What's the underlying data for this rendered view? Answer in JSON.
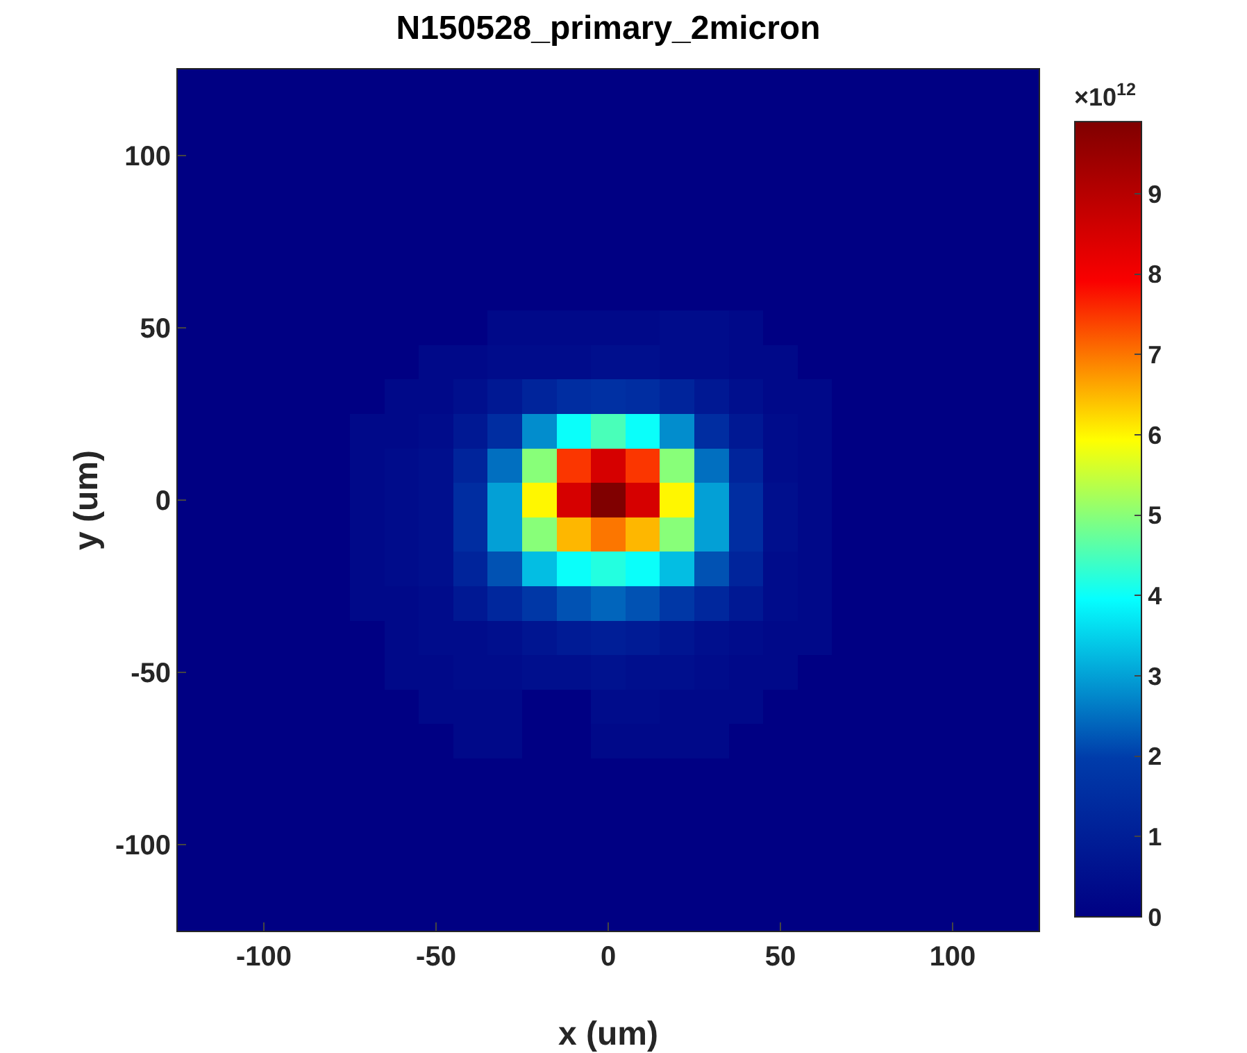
{
  "chart_data": {
    "type": "heatmap",
    "title": "N150528_primary_2micron",
    "xlabel": "x (um)",
    "ylabel": "y (um)",
    "clabel": "×10$^{12}$",
    "x": [
      -120,
      -110,
      -100,
      -90,
      -80,
      -70,
      -60,
      -50,
      -40,
      -30,
      -20,
      -10,
      0,
      10,
      20,
      30,
      40,
      50,
      60,
      70,
      80,
      90,
      100,
      110,
      120
    ],
    "y": [
      120,
      110,
      100,
      90,
      80,
      70,
      60,
      50,
      40,
      30,
      20,
      10,
      0,
      -10,
      -20,
      -30,
      -40,
      -50,
      -60,
      -70,
      -80,
      -90,
      -100,
      -110,
      -120
    ],
    "cells": [
      [
        0,
        0,
        0,
        0,
        0,
        0,
        0,
        0,
        0,
        0,
        0,
        0,
        0,
        0,
        0,
        0,
        0,
        0,
        0,
        0,
        0,
        0,
        0,
        0,
        0
      ],
      [
        0,
        0,
        0,
        0,
        0,
        0,
        0,
        0,
        0,
        0,
        0,
        0,
        0,
        0,
        0,
        0,
        0,
        0,
        0,
        0,
        0,
        0,
        0,
        0,
        0
      ],
      [
        0,
        0,
        0,
        0,
        0,
        0,
        0,
        0,
        0,
        0,
        0,
        0,
        0,
        0,
        0,
        0,
        0,
        0,
        0,
        0,
        0,
        0,
        0,
        0,
        0
      ],
      [
        0,
        0,
        0,
        0,
        0,
        0,
        0,
        0,
        0,
        0,
        0,
        0,
        0,
        0,
        0,
        0,
        0,
        0,
        0,
        0,
        0,
        0,
        0,
        0,
        0
      ],
      [
        0,
        0,
        0,
        0,
        0,
        0,
        0,
        0,
        0,
        0,
        0,
        0,
        0,
        0,
        0,
        0,
        0,
        0,
        0,
        0,
        0,
        0,
        0,
        0,
        0
      ],
      [
        0,
        0,
        0,
        0,
        0,
        0,
        0,
        0,
        0,
        0,
        0,
        0,
        0,
        0,
        0,
        0,
        0,
        0,
        0,
        0,
        0,
        0,
        0,
        0,
        0
      ],
      [
        0,
        0,
        0,
        0,
        0,
        0,
        0,
        0,
        0,
        0,
        0,
        0,
        0,
        0,
        0,
        0,
        0,
        0,
        0,
        0,
        0,
        0,
        0,
        0,
        0
      ],
      [
        0,
        0,
        0,
        0,
        0,
        0,
        0,
        0,
        0,
        0.3,
        0.3,
        0.3,
        0.3,
        0.3,
        0.4,
        0.4,
        0.3,
        0,
        0,
        0,
        0,
        0,
        0,
        0,
        0
      ],
      [
        0,
        0,
        0,
        0,
        0,
        0,
        0,
        0.3,
        0.3,
        0.4,
        0.4,
        0.4,
        0.5,
        0.5,
        0.4,
        0.4,
        0.3,
        0.3,
        0,
        0,
        0,
        0,
        0,
        0,
        0
      ],
      [
        0,
        0,
        0,
        0,
        0,
        0,
        0.3,
        0.3,
        0.5,
        0.8,
        1.2,
        1.5,
        1.6,
        1.5,
        1.2,
        0.8,
        0.5,
        0.3,
        0.3,
        0,
        0,
        0,
        0,
        0,
        0
      ],
      [
        0,
        0,
        0,
        0,
        0,
        0.3,
        0.3,
        0.4,
        0.8,
        1.5,
        2.8,
        4.0,
        4.5,
        4.0,
        2.8,
        1.5,
        0.8,
        0.4,
        0.3,
        0,
        0,
        0,
        0,
        0,
        0
      ],
      [
        0,
        0,
        0,
        0,
        0,
        0.3,
        0.4,
        0.5,
        1.2,
        2.5,
        5.0,
        7.5,
        8.5,
        7.5,
        5.0,
        2.5,
        1.2,
        0.4,
        0.3,
        0,
        0,
        0,
        0,
        0,
        0
      ],
      [
        0,
        0,
        0,
        0,
        0,
        0.3,
        0.4,
        0.5,
        1.5,
        3.0,
        6.0,
        8.5,
        9.9,
        8.5,
        6.0,
        3.0,
        1.5,
        0.5,
        0.3,
        0,
        0,
        0,
        0,
        0,
        0
      ],
      [
        0,
        0,
        0,
        0,
        0,
        0.3,
        0.4,
        0.5,
        1.5,
        3.0,
        5.0,
        6.5,
        7.0,
        6.5,
        5.0,
        3.0,
        1.5,
        0.5,
        0.3,
        0,
        0,
        0,
        0,
        0,
        0
      ],
      [
        0,
        0,
        0,
        0,
        0,
        0.3,
        0.4,
        0.5,
        1.2,
        2.2,
        3.3,
        4.0,
        4.2,
        4.0,
        3.3,
        2.2,
        1.2,
        0.4,
        0.3,
        0,
        0,
        0,
        0,
        0,
        0
      ],
      [
        0,
        0,
        0,
        0,
        0,
        0.3,
        0.3,
        0.4,
        0.8,
        1.3,
        1.8,
        2.2,
        2.4,
        2.2,
        1.8,
        1.3,
        0.8,
        0.4,
        0.3,
        0,
        0,
        0,
        0,
        0,
        0
      ],
      [
        0,
        0,
        0,
        0,
        0,
        0,
        0.3,
        0.4,
        0.4,
        0.5,
        0.7,
        0.9,
        1.0,
        0.9,
        0.7,
        0.5,
        0.4,
        0.3,
        0.3,
        0,
        0,
        0,
        0,
        0,
        0
      ],
      [
        0,
        0,
        0,
        0,
        0,
        0,
        0.3,
        0.3,
        0.4,
        0.4,
        0.5,
        0.5,
        0.6,
        0.5,
        0.5,
        0.4,
        0.3,
        0.3,
        0,
        0,
        0,
        0,
        0,
        0,
        0
      ],
      [
        0,
        0,
        0,
        0,
        0,
        0,
        0,
        0.3,
        0.3,
        0.3,
        0,
        0,
        0.4,
        0.4,
        0.3,
        0.3,
        0.3,
        0,
        0,
        0,
        0,
        0,
        0,
        0,
        0
      ],
      [
        0,
        0,
        0,
        0,
        0,
        0,
        0,
        0,
        0.3,
        0.3,
        0,
        0,
        0.3,
        0.3,
        0.3,
        0.3,
        0,
        0,
        0,
        0,
        0,
        0,
        0,
        0,
        0
      ],
      [
        0,
        0,
        0,
        0,
        0,
        0,
        0,
        0,
        0,
        0,
        0,
        0,
        0,
        0,
        0,
        0,
        0,
        0,
        0,
        0,
        0,
        0,
        0,
        0,
        0
      ],
      [
        0,
        0,
        0,
        0,
        0,
        0,
        0,
        0,
        0,
        0,
        0,
        0,
        0,
        0,
        0,
        0,
        0,
        0,
        0,
        0,
        0,
        0,
        0,
        0,
        0
      ],
      [
        0,
        0,
        0,
        0,
        0,
        0,
        0,
        0,
        0,
        0,
        0,
        0,
        0,
        0,
        0,
        0,
        0,
        0,
        0,
        0,
        0,
        0,
        0,
        0,
        0
      ],
      [
        0,
        0,
        0,
        0,
        0,
        0,
        0,
        0,
        0,
        0,
        0,
        0,
        0,
        0,
        0,
        0,
        0,
        0,
        0,
        0,
        0,
        0,
        0,
        0,
        0
      ],
      [
        0,
        0,
        0,
        0,
        0,
        0,
        0,
        0,
        0,
        0,
        0,
        0,
        0,
        0,
        0,
        0,
        0,
        0,
        0,
        0,
        0,
        0,
        0,
        0,
        0
      ]
    ],
    "xlim": [
      -125,
      125
    ],
    "ylim": [
      -125,
      125
    ],
    "xticks": [
      -100,
      -50,
      0,
      50,
      100
    ],
    "yticks": [
      -100,
      -50,
      0,
      50,
      100
    ],
    "clim": [
      0,
      9.9
    ],
    "cticks": [
      0,
      1,
      2,
      3,
      4,
      5,
      6,
      7,
      8,
      9
    ]
  }
}
